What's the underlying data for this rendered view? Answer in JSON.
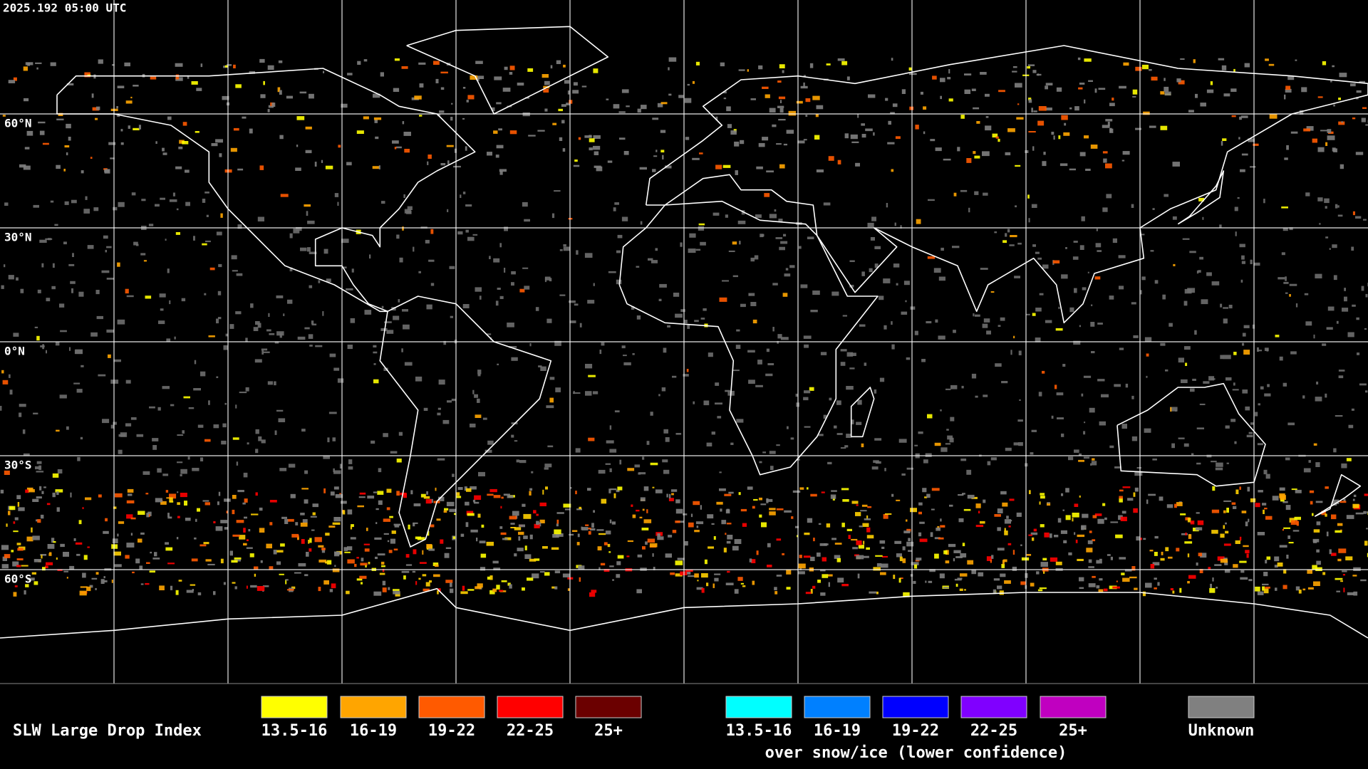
{
  "timestamp": "2025.192 05:00 UTC",
  "latitude_labels": [
    "60°N",
    "30°N",
    "0°N",
    "30°S",
    "60°S"
  ],
  "legend": {
    "title": "SLW Large Drop Index",
    "groups": [
      {
        "items": [
          {
            "label": "13.5-16",
            "color": "#ffff00"
          },
          {
            "label": "16-19",
            "color": "#ffa500"
          },
          {
            "label": "19-22",
            "color": "#ff5a00"
          },
          {
            "label": "22-25",
            "color": "#ff0000"
          },
          {
            "label": "25+",
            "color": "#6b0000"
          }
        ]
      },
      {
        "items": [
          {
            "label": "13.5-16",
            "color": "#00ffff"
          },
          {
            "label": "16-19",
            "color": "#0080ff"
          },
          {
            "label": "19-22",
            "color": "#0000ff"
          },
          {
            "label": "22-25",
            "color": "#8000ff"
          },
          {
            "label": "25+",
            "color": "#c000c0"
          }
        ],
        "caption": "over snow/ice (lower confidence)"
      },
      {
        "items": [
          {
            "label": "Unknown",
            "color": "#808080"
          }
        ]
      }
    ]
  }
}
